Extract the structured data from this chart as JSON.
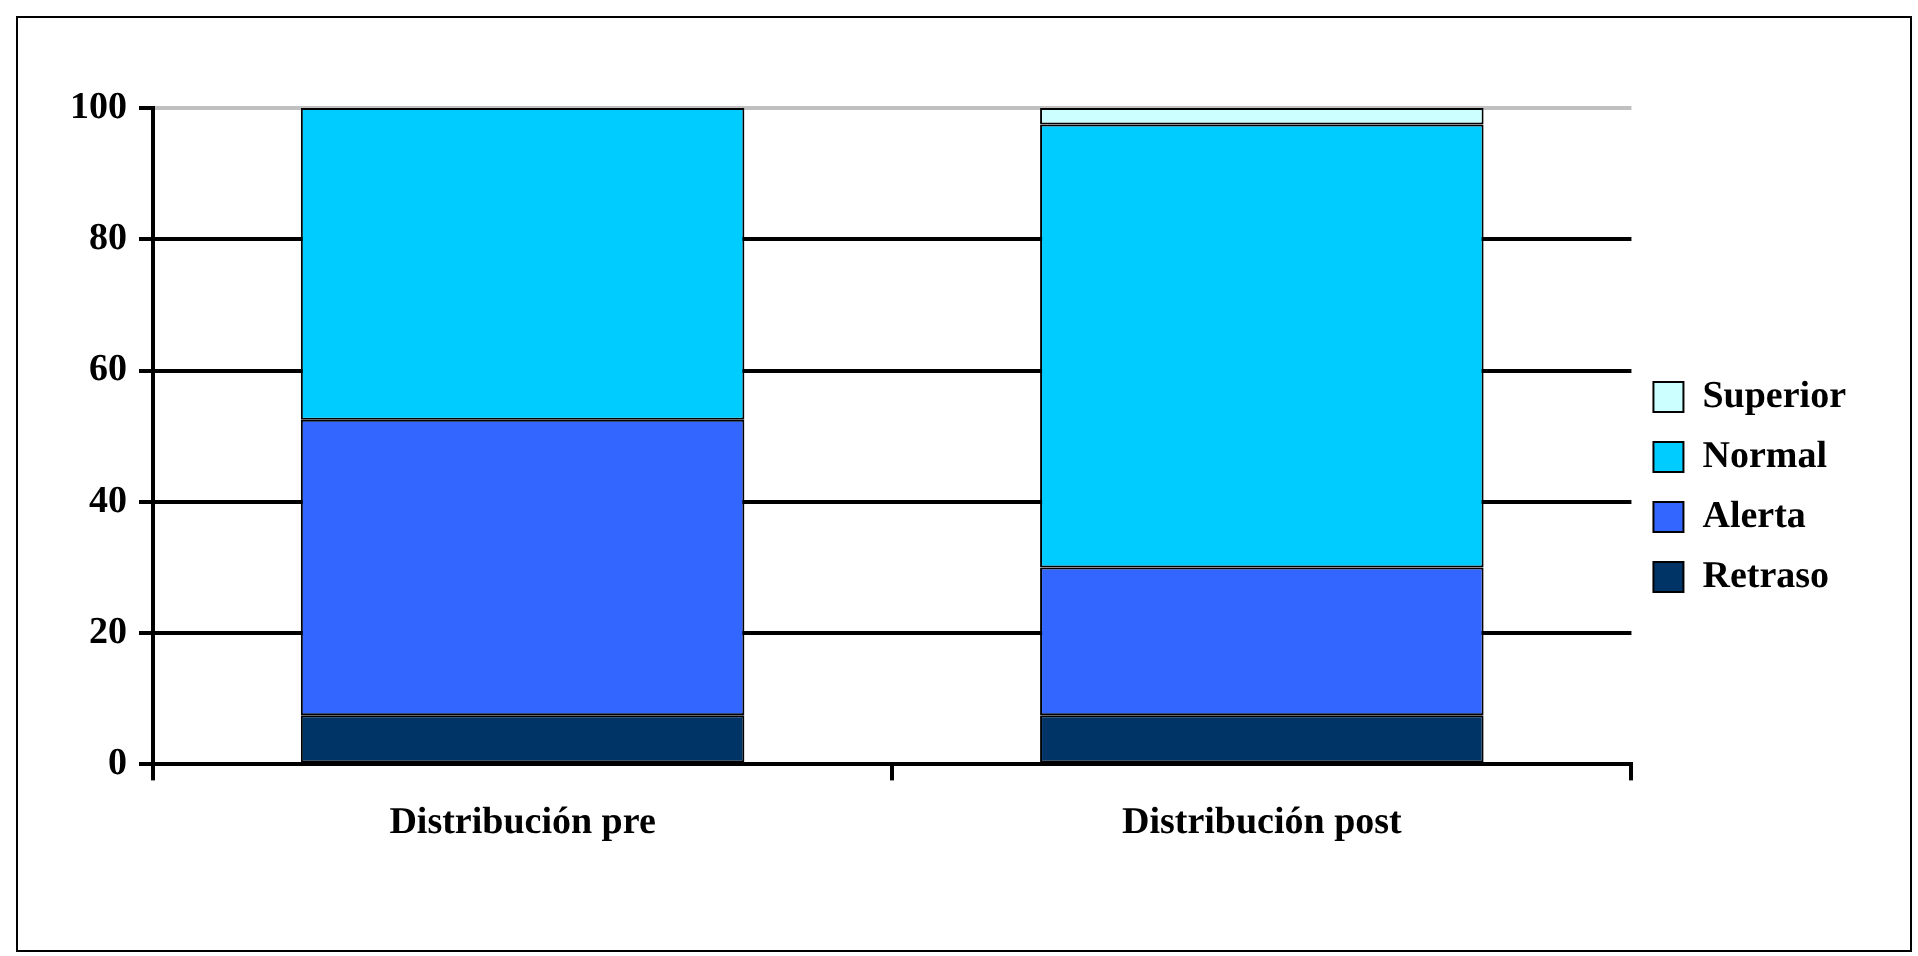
{
  "chart_data": {
    "type": "bar",
    "stacked": true,
    "categories": [
      "Distribución pre",
      "Distribución post"
    ],
    "series": [
      {
        "name": "Retraso",
        "color": "#003366",
        "values": [
          7.5,
          7.5
        ]
      },
      {
        "name": "Alerta",
        "color": "#3366ff",
        "values": [
          45,
          22.5
        ]
      },
      {
        "name": "Normal",
        "color": "#00ccff",
        "values": [
          47.5,
          67.5
        ]
      },
      {
        "name": "Superior",
        "color": "#ccffff",
        "values": [
          0,
          2.5
        ]
      }
    ],
    "ylim": [
      0,
      100
    ],
    "yticks": [
      0,
      20,
      40,
      60,
      80,
      100
    ],
    "grid": "y",
    "legend": "right"
  }
}
